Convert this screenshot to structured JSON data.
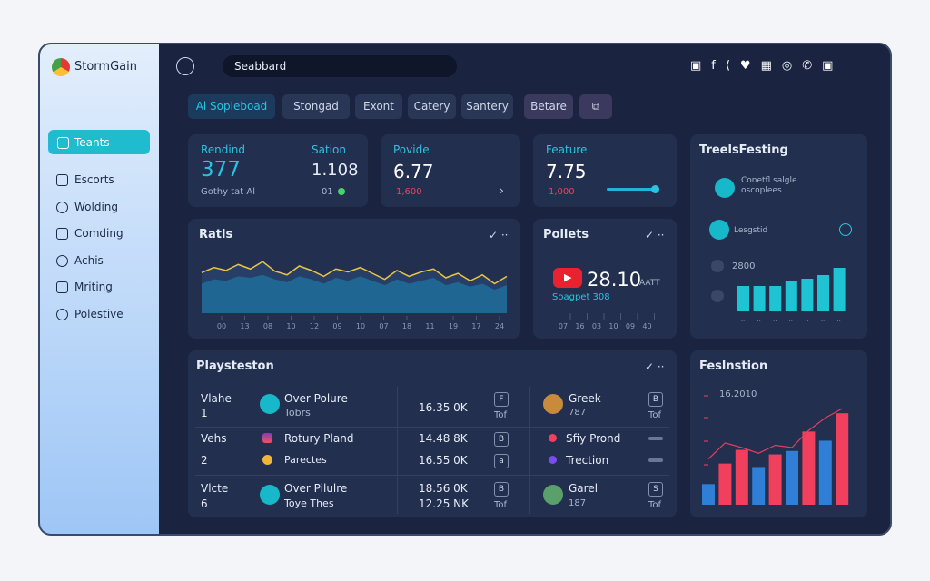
{
  "sidebar": {
    "brand": "StormGain",
    "items": [
      "Teants",
      "Escorts",
      "Wolding",
      "Comding",
      "Achis",
      "Mriting",
      "Polestive"
    ]
  },
  "search": "Seabbard",
  "tabs": [
    "Al Sopleboad",
    "Stongad",
    "Exont",
    "Catery",
    "Santery",
    "Betare"
  ],
  "stats": [
    {
      "label": "Rendind",
      "value": "377",
      "note": "Gothy tat Al"
    },
    {
      "label": "Sation",
      "value": "1.108",
      "note": "01"
    },
    {
      "label": "Povide",
      "value": "6.77",
      "note": "1,600"
    },
    {
      "label": "Feature",
      "value": "7.75",
      "note": "1,000"
    }
  ],
  "trends": {
    "title": "TreelsFesting",
    "items": [
      "Conetfl salgle oscoplees",
      "Lesgstid"
    ],
    "label": "2800",
    "ylim": [
      0,
      60
    ],
    "values": [
      28,
      28,
      28,
      34,
      36,
      40,
      48
    ]
  },
  "ratls": {
    "title": "Ratls",
    "ylim": [
      0,
      80
    ],
    "values": [
      55,
      62,
      58,
      66,
      60,
      70,
      57,
      52,
      64,
      58,
      50,
      60,
      56,
      62,
      54,
      46,
      58,
      50,
      56,
      60,
      48,
      54,
      44,
      52,
      40,
      50
    ],
    "values2": [
      40,
      46,
      44,
      50,
      48,
      52,
      46,
      42,
      50,
      46,
      40,
      48,
      44,
      50,
      44,
      38,
      46,
      40,
      44,
      48,
      38,
      42,
      36,
      40,
      32,
      38
    ],
    "labels": [
      "00",
      "13",
      "08",
      "10",
      "12",
      "09",
      "10",
      "07",
      "18",
      "11",
      "19",
      "17",
      "24"
    ]
  },
  "pollets": {
    "title": "Pollets",
    "value": "28.10",
    "unit": "AATT",
    "note": "Soagpet 308",
    "labels": [
      "07",
      "16",
      "03",
      "10",
      "09",
      "40"
    ]
  },
  "table": {
    "title": "Playsteston",
    "rows": [
      {
        "label": "Vlahe",
        "num": "1",
        "title": "Over Polure",
        "sub": "Tobrs",
        "amount": "16.35 0K",
        "person": "Greek",
        "id": "787",
        "tag": "Tof"
      },
      {
        "label": "Vehs",
        "num": "2",
        "title": "Rotury Pland",
        "sub": "Parectes",
        "amount": "14.48 8K",
        "amount2": "16.55 0K",
        "person": "Sfiy Prond",
        "id": "Trection"
      },
      {
        "label": "Vlcte",
        "num": "6",
        "title": "Over Pilulre",
        "sub": "Toye Thes",
        "amount": "18.56 0K",
        "amount2": "12.25 NK",
        "person": "Garel",
        "id": "187",
        "tag": "Tof"
      }
    ]
  },
  "feslnstion": {
    "title": "Feslnstion",
    "label": "16.2010",
    "ylim": [
      0,
      100
    ],
    "values": [
      18,
      36,
      48,
      33,
      44,
      47,
      64,
      56,
      80
    ],
    "colors": [
      "#2f7fd6",
      "#f0405e",
      "#f0405e",
      "#2f7fd6",
      "#f0405e",
      "#2f7fd6",
      "#f0405e",
      "#2f7fd6",
      "#f0405e"
    ],
    "line": [
      40,
      54,
      50,
      45,
      52,
      50,
      65,
      76,
      84
    ]
  }
}
